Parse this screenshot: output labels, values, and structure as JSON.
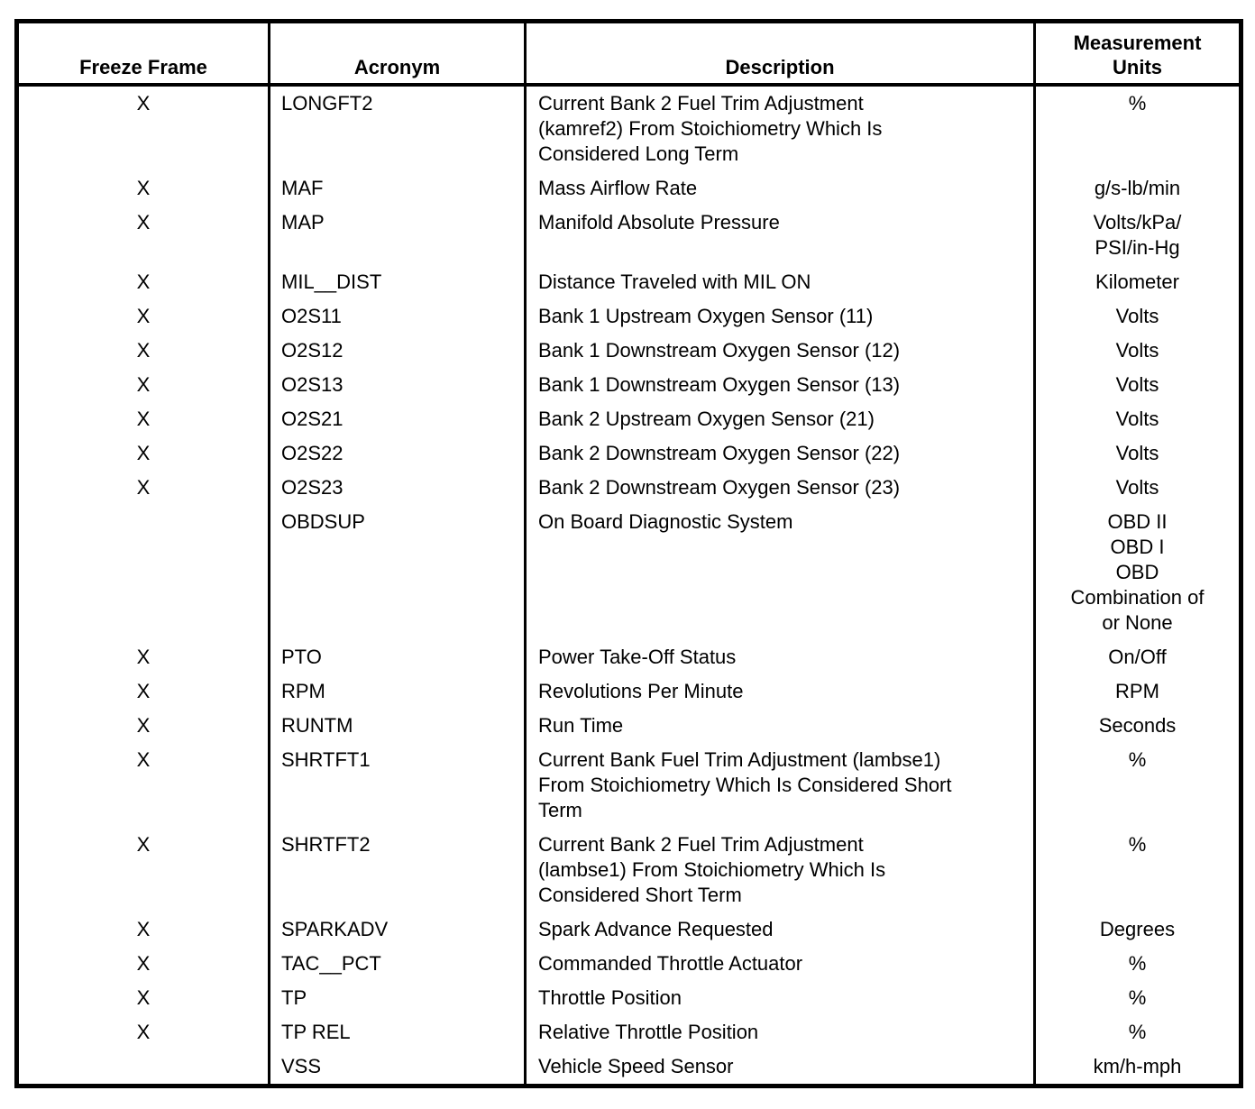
{
  "colors": {
    "text": "#000000",
    "border": "#000000",
    "background": "#ffffff"
  },
  "header": {
    "columns": [
      "Freeze Frame",
      "Acronym",
      "Description",
      "Measurement\nUnits"
    ]
  },
  "rows": [
    {
      "freeze_frame": "X",
      "acronym": "LONGFT2",
      "description": "Current Bank 2 Fuel Trim Adjustment\n(kamref2) From Stoichiometry Which Is\nConsidered Long Term",
      "units": "%"
    },
    {
      "freeze_frame": "X",
      "acronym": "MAF",
      "description": "Mass Airflow Rate",
      "units": "g/s-lb/min"
    },
    {
      "freeze_frame": "X",
      "acronym": "MAP",
      "description": "Manifold Absolute Pressure",
      "units": "Volts/kPa/\nPSI/in-Hg"
    },
    {
      "freeze_frame": "X",
      "acronym": "MIL__DIST",
      "description": "Distance Traveled with MIL ON",
      "units": "Kilometer"
    },
    {
      "freeze_frame": "X",
      "acronym": "O2S11",
      "description": "Bank 1 Upstream Oxygen Sensor (11)",
      "units": "Volts"
    },
    {
      "freeze_frame": "X",
      "acronym": "O2S12",
      "description": "Bank 1 Downstream Oxygen Sensor (12)",
      "units": "Volts"
    },
    {
      "freeze_frame": "X",
      "acronym": "O2S13",
      "description": "Bank 1 Downstream Oxygen Sensor (13)",
      "units": "Volts"
    },
    {
      "freeze_frame": "X",
      "acronym": "O2S21",
      "description": "Bank 2 Upstream Oxygen Sensor (21)",
      "units": "Volts"
    },
    {
      "freeze_frame": "X",
      "acronym": "O2S22",
      "description": "Bank 2 Downstream Oxygen Sensor (22)",
      "units": "Volts"
    },
    {
      "freeze_frame": "X",
      "acronym": "O2S23",
      "description": "Bank 2 Downstream Oxygen Sensor (23)",
      "units": "Volts"
    },
    {
      "freeze_frame": "",
      "acronym": "OBDSUP",
      "description": "On Board Diagnostic System",
      "units": "OBD II\nOBD I\nOBD\nCombination of\nor None"
    },
    {
      "freeze_frame": "X",
      "acronym": "PTO",
      "description": "Power Take-Off Status",
      "units": "On/Off"
    },
    {
      "freeze_frame": "X",
      "acronym": "RPM",
      "description": "Revolutions Per Minute",
      "units": "RPM"
    },
    {
      "freeze_frame": "X",
      "acronym": "RUNTM",
      "description": "Run Time",
      "units": "Seconds"
    },
    {
      "freeze_frame": "X",
      "acronym": "SHRTFT1",
      "description": "Current Bank Fuel Trim Adjustment (lambse1)\nFrom Stoichiometry Which Is Considered Short\nTerm",
      "units": "%"
    },
    {
      "freeze_frame": "X",
      "acronym": "SHRTFT2",
      "description": "Current Bank 2 Fuel Trim Adjustment\n(lambse1) From Stoichiometry Which Is\nConsidered Short Term",
      "units": "%"
    },
    {
      "freeze_frame": "X",
      "acronym": "SPARKADV",
      "description": "Spark Advance Requested",
      "units": "Degrees"
    },
    {
      "freeze_frame": "X",
      "acronym": "TAC__PCT",
      "description": "Commanded Throttle Actuator",
      "units": "%"
    },
    {
      "freeze_frame": "X",
      "acronym": "TP",
      "description": "Throttle Position",
      "units": "%"
    },
    {
      "freeze_frame": "X",
      "acronym": "TP REL",
      "description": "Relative Throttle Position",
      "units": "%"
    },
    {
      "freeze_frame": "",
      "acronym": "VSS",
      "description": "Vehicle Speed Sensor",
      "units": "km/h-mph"
    }
  ]
}
